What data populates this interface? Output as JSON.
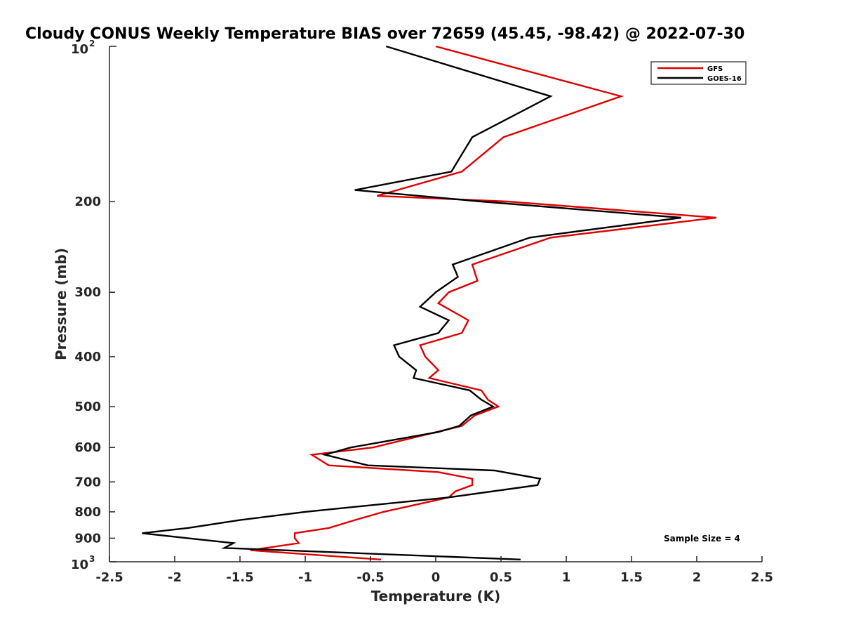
{
  "chart_data": {
    "type": "line",
    "title": "Cloudy CONUS Weekly Temperature BIAS over 72659 (45.45, -98.42) @ 2022-07-30",
    "xlabel": "Temperature (K)",
    "ylabel": "Pressure (mb)",
    "x_axis": {
      "range": [
        -2.5,
        2.5
      ],
      "scale": "linear",
      "ticks": [
        -2.5,
        -2,
        -1.5,
        -1,
        -0.5,
        0,
        0.5,
        1,
        1.5,
        2,
        2.5
      ],
      "tick_labels": [
        "-2.5",
        "-2",
        "-1.5",
        "-1",
        "-0.5",
        "0",
        "0.5",
        "1",
        "1.5",
        "2",
        "2.5"
      ]
    },
    "y_axis": {
      "range": [
        100,
        1000
      ],
      "scale": "log",
      "reversed": true,
      "ticks": [
        200,
        300,
        400,
        500,
        600,
        700,
        800,
        900
      ],
      "tick_labels": [
        "200",
        "300",
        "400",
        "500",
        "600",
        "700",
        "800",
        "900"
      ]
    },
    "y_axis_ends": {
      "top": {
        "base": "10",
        "exp": "2"
      },
      "bottom": {
        "base": "10",
        "exp": "3"
      }
    },
    "legend": {
      "position": "top-right"
    },
    "annotation": "Sample Size = 4",
    "series": [
      {
        "name": "GFS",
        "color": "#e00000",
        "points": [
          [
            0,
            100
          ],
          [
            1.42,
            125
          ],
          [
            0.52,
            150
          ],
          [
            0.2,
            175
          ],
          [
            -0.45,
            195
          ],
          [
            0.55,
            200
          ],
          [
            2.15,
            215
          ],
          [
            0.88,
            235
          ],
          [
            0.28,
            265
          ],
          [
            0.32,
            285
          ],
          [
            0.1,
            300
          ],
          [
            0.02,
            315
          ],
          [
            0.25,
            340
          ],
          [
            0.2,
            360
          ],
          [
            -0.12,
            380
          ],
          [
            -0.08,
            400
          ],
          [
            0.02,
            425
          ],
          [
            -0.05,
            440
          ],
          [
            0.35,
            465
          ],
          [
            0.4,
            485
          ],
          [
            0.48,
            500
          ],
          [
            0.3,
            520
          ],
          [
            0.2,
            545
          ],
          [
            -0.48,
            600
          ],
          [
            -0.95,
            620
          ],
          [
            -0.82,
            650
          ],
          [
            0.02,
            670
          ],
          [
            0.28,
            690
          ],
          [
            0.28,
            710
          ],
          [
            0.15,
            730
          ],
          [
            0.1,
            750
          ],
          [
            -0.4,
            800
          ],
          [
            -0.62,
            830
          ],
          [
            -0.82,
            860
          ],
          [
            -1.08,
            880
          ],
          [
            -1.08,
            900
          ],
          [
            -1.05,
            920
          ],
          [
            -1.42,
            950
          ],
          [
            -0.42,
            990
          ]
        ]
      },
      {
        "name": "GOES-16",
        "color": "#000000",
        "points": [
          [
            -0.38,
            100
          ],
          [
            0.88,
            125
          ],
          [
            0.28,
            150
          ],
          [
            0.12,
            175
          ],
          [
            -0.62,
            190
          ],
          [
            0.35,
            200
          ],
          [
            1.88,
            215
          ],
          [
            0.72,
            235
          ],
          [
            0.13,
            265
          ],
          [
            0.17,
            280
          ],
          [
            0.0,
            300
          ],
          [
            -0.12,
            320
          ],
          [
            0.1,
            340
          ],
          [
            0.02,
            360
          ],
          [
            -0.32,
            380
          ],
          [
            -0.28,
            400
          ],
          [
            -0.15,
            425
          ],
          [
            -0.17,
            440
          ],
          [
            0.26,
            465
          ],
          [
            0.35,
            485
          ],
          [
            0.44,
            500
          ],
          [
            0.27,
            520
          ],
          [
            0.18,
            545
          ],
          [
            0.02,
            560
          ],
          [
            -0.65,
            600
          ],
          [
            -0.85,
            620
          ],
          [
            -0.52,
            650
          ],
          [
            0.45,
            665
          ],
          [
            0.8,
            690
          ],
          [
            0.78,
            710
          ],
          [
            0.1,
            750
          ],
          [
            -1.0,
            800
          ],
          [
            -1.5,
            830
          ],
          [
            -1.9,
            860
          ],
          [
            -2.25,
            880
          ],
          [
            -1.9,
            900
          ],
          [
            -1.55,
            920
          ],
          [
            -1.62,
            940
          ],
          [
            0.65,
            990
          ]
        ]
      }
    ]
  }
}
